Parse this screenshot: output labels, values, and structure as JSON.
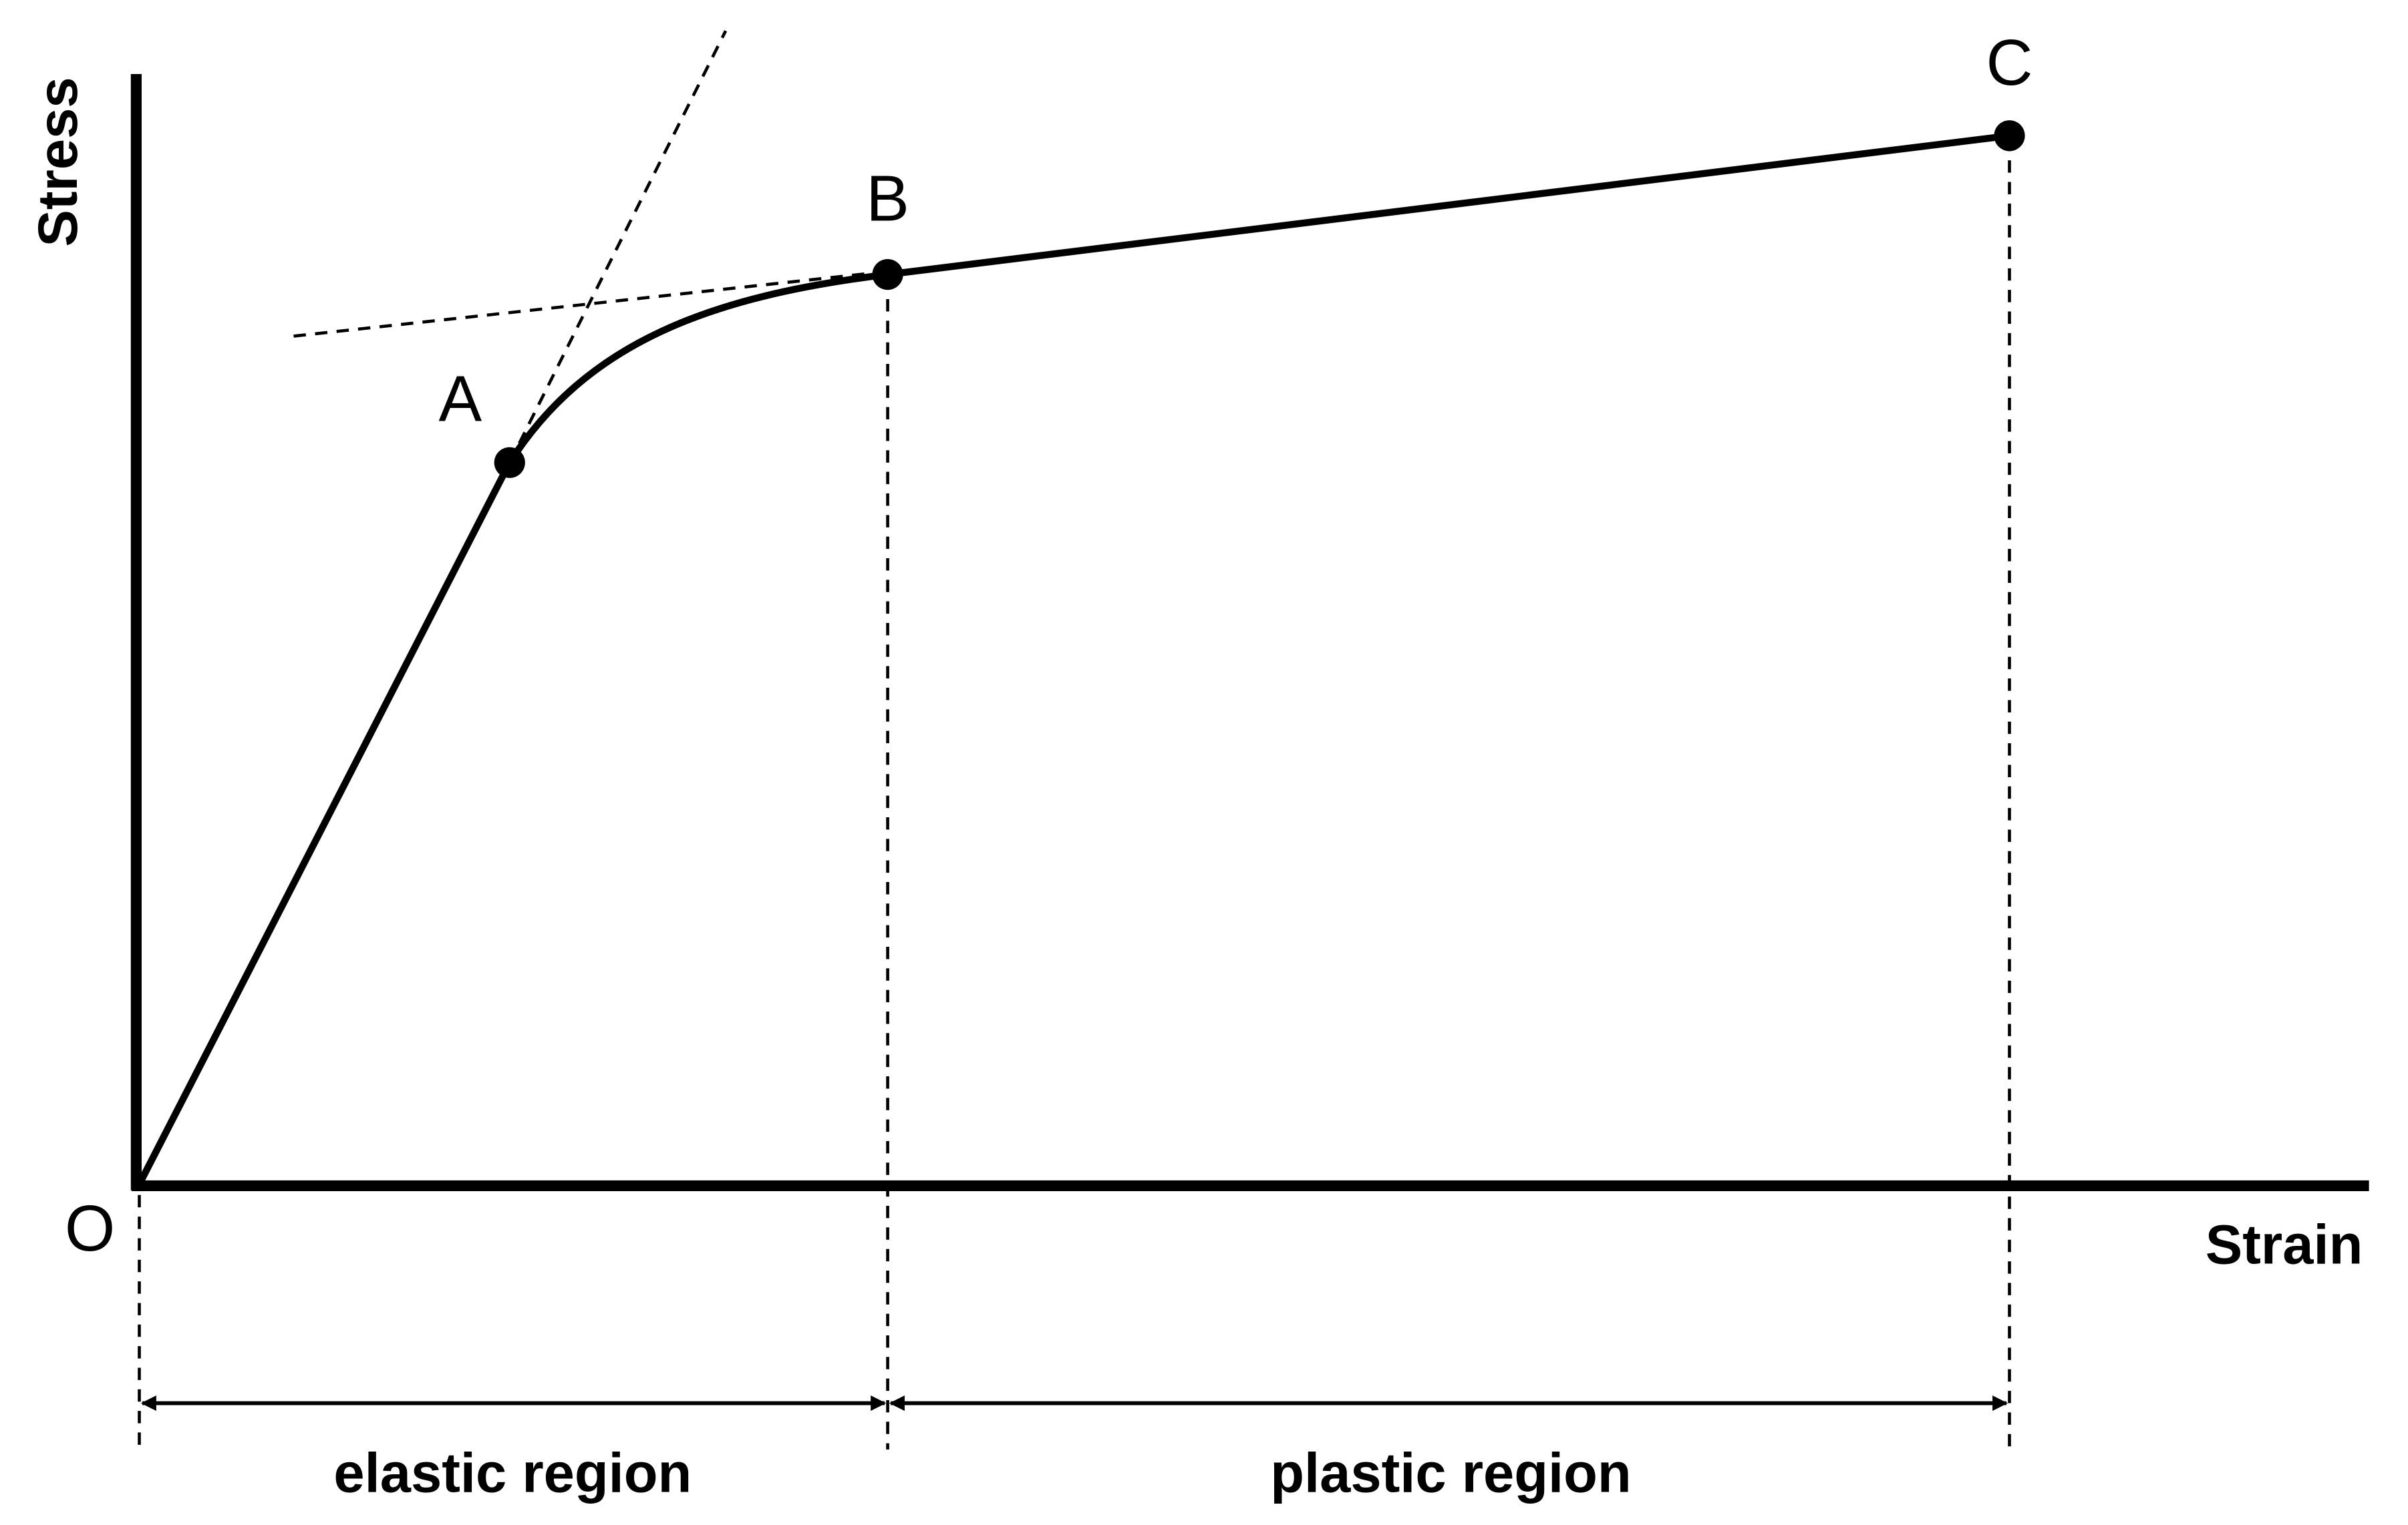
{
  "axes": {
    "y_label": "Stress",
    "x_label": "Strain"
  },
  "points": [
    {
      "label": "O"
    },
    {
      "label": "A"
    },
    {
      "label": "B"
    },
    {
      "label": "C"
    }
  ],
  "regions": [
    {
      "label": "elastic region"
    },
    {
      "label": "plastic region"
    }
  ]
}
